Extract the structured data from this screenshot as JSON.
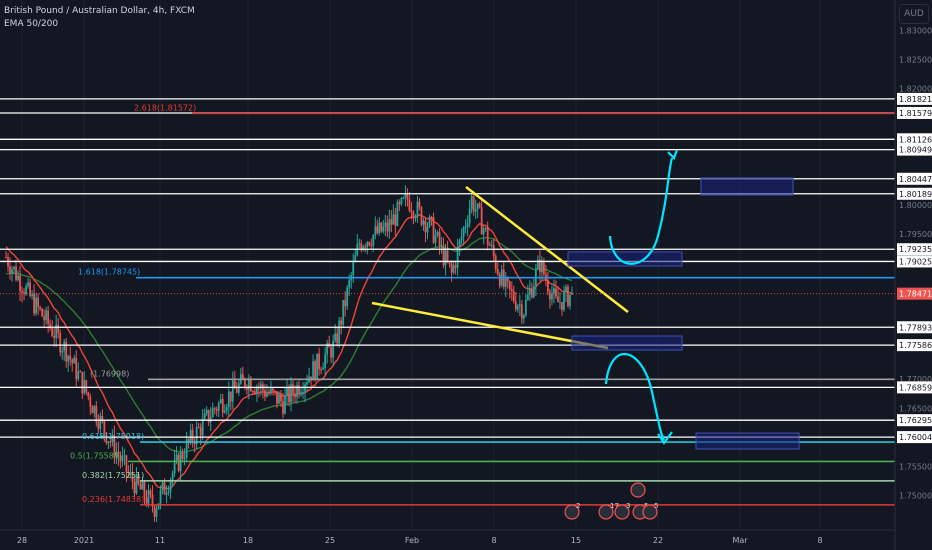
{
  "legend": {
    "symbol": "British Pound / Australian Dollar, 4h, FXCM",
    "indicator": "EMA 50/200"
  },
  "currency_button": "AUD",
  "colors": {
    "background": "#131722",
    "up_candle": "#26a69a",
    "down_candle": "#ef5350",
    "ema50": "#f44336",
    "ema200": "#2e7d32",
    "level_line": "#ffffff",
    "trend_line": "#ffeb3b",
    "arrow": "#00e5ff",
    "target_box": "#1a237e",
    "fib_1618": "#2196f3",
    "fib_2618": "#e53935"
  },
  "chart_data": {
    "type": "candlestick",
    "title": "British Pound / Australian Dollar, 4h, FXCM",
    "y_range": [
      1.7475,
      1.8335
    ],
    "y_tick_labels": [
      "1.83000",
      "1.82500",
      "1.82000",
      "1.80000",
      "1.79500",
      "1.77000",
      "1.76500",
      "1.75500",
      "1.75000"
    ],
    "x_tick_labels": [
      "28",
      "2021",
      "11",
      "18",
      "25",
      "Feb",
      "8",
      "15",
      "22",
      "Mar",
      "8"
    ],
    "last_price": "1.78471",
    "horizontal_levels": [
      {
        "label": "1.81821",
        "value": 1.81821
      },
      {
        "label": "1.81579",
        "value": 1.81579
      },
      {
        "label": "1.81126",
        "value": 1.81126
      },
      {
        "label": "1.80949",
        "value": 1.80949
      },
      {
        "label": "1.80447",
        "value": 1.80447
      },
      {
        "label": "1.80189",
        "value": 1.80189
      },
      {
        "label": "1.79235",
        "value": 1.79235
      },
      {
        "label": "1.79025",
        "value": 1.79025
      },
      {
        "label": "1.77893",
        "value": 1.77893
      },
      {
        "label": "1.77586",
        "value": 1.77586
      },
      {
        "label": "1.76859",
        "value": 1.76859
      },
      {
        "label": "1.76295",
        "value": 1.76295
      },
      {
        "label": "1.76004",
        "value": 1.76004
      }
    ],
    "fib_levels": [
      {
        "label": "2.618(1.81572)",
        "value": 1.81572
      },
      {
        "label": "1.618(1.78745)",
        "value": 1.78745
      },
      {
        "label": "(1.76998)",
        "value": 1.76998
      },
      {
        "label": "0.618(1.75918)",
        "value": 1.75918
      },
      {
        "label": "0.5(1.75585)",
        "value": 1.75585
      },
      {
        "label": "0.382(1.75251)",
        "value": 1.75251
      },
      {
        "label": "0.236(1.74838)",
        "value": 1.74838
      }
    ],
    "event_badges": [
      "2",
      "17",
      "3",
      "5",
      "5"
    ]
  }
}
